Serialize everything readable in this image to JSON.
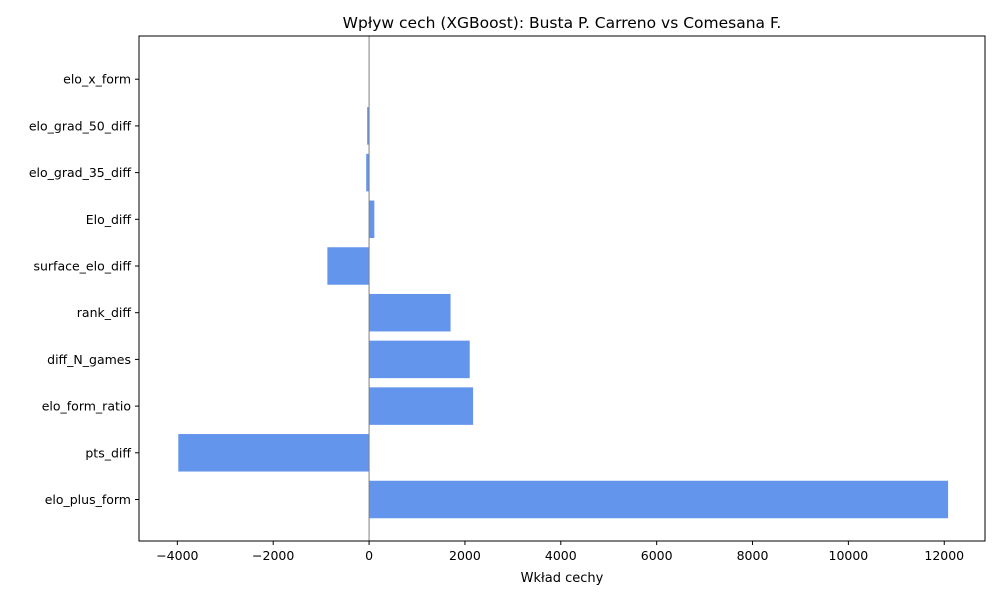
{
  "chart_data": {
    "type": "bar",
    "orientation": "horizontal",
    "title": "Wpływ cech (XGBoost): Busta P. Carreno vs Comesana F.",
    "xlabel": "Wkład cechy",
    "ylabel": "",
    "categories": [
      "elo_plus_form",
      "pts_diff",
      "elo_form_ratio",
      "diff_N_games",
      "rank_diff",
      "surface_elo_diff",
      "Elo_diff",
      "elo_grad_35_diff",
      "elo_grad_50_diff",
      "elo_x_form"
    ],
    "values": [
      12080,
      -3980,
      2170,
      2100,
      1700,
      -870,
      110,
      -60,
      -40,
      0
    ],
    "xlim": [
      -4800,
      12850
    ],
    "xticks": [
      -4000,
      -2000,
      0,
      2000,
      4000,
      6000,
      8000,
      10000,
      12000
    ],
    "xtick_labels": [
      "−4000",
      "−2000",
      "0",
      "2000",
      "4000",
      "6000",
      "8000",
      "10000",
      "12000"
    ],
    "bar_color": "#6495ED",
    "zero_line_color": "#808080",
    "grid": false,
    "legend": "none"
  }
}
